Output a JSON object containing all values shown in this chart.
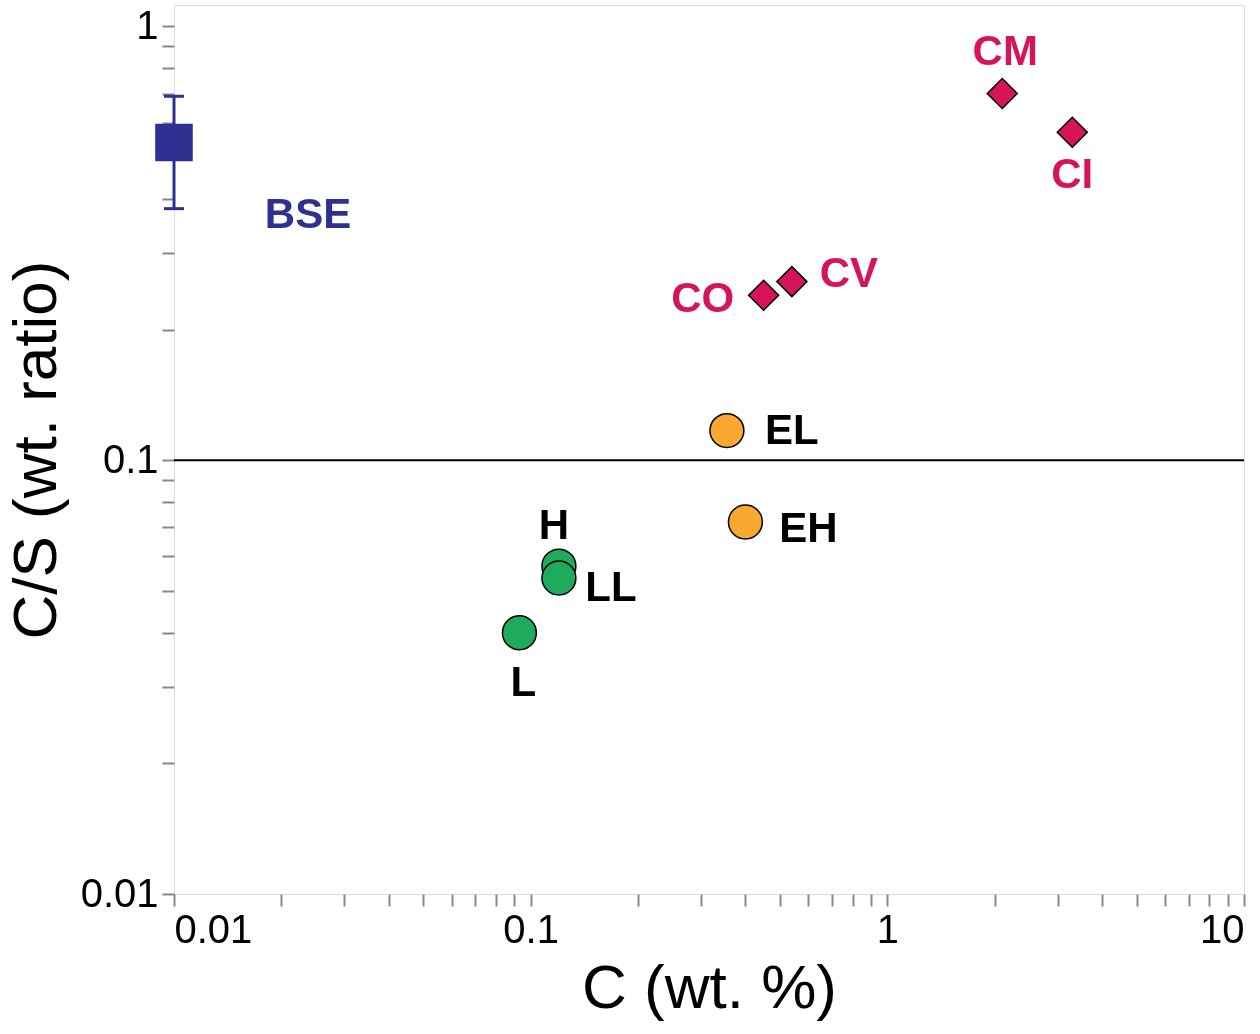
{
  "chart_data": {
    "type": "scatter",
    "xlabel": "C (wt. %)",
    "ylabel": "C/S (wt. ratio)",
    "log": "xy",
    "grid": false,
    "xlim": [
      0.01,
      10
    ],
    "ylim": [
      0.01,
      1.12
    ],
    "xticks": [
      0.01,
      {
        "value": 0.02,
        "label": null
      },
      {
        "value": 0.03,
        "label": null
      },
      {
        "value": 0.04,
        "label": null
      },
      {
        "value": 0.05,
        "label": null
      },
      {
        "value": 0.06,
        "label": null
      },
      {
        "value": 0.07,
        "label": null
      },
      {
        "value": 0.08,
        "label": null
      },
      {
        "value": 0.09,
        "label": null
      },
      0.1,
      {
        "value": 0.2,
        "label": null
      },
      {
        "value": 0.3,
        "label": null
      },
      {
        "value": 0.4,
        "label": null
      },
      {
        "value": 0.5,
        "label": null
      },
      {
        "value": 0.6,
        "label": null
      },
      {
        "value": 0.7,
        "label": null
      },
      {
        "value": 0.8,
        "label": null
      },
      {
        "value": 0.9,
        "label": null
      },
      1,
      {
        "value": 2,
        "label": null
      },
      {
        "value": 3,
        "label": null
      },
      {
        "value": 4,
        "label": null
      },
      {
        "value": 5,
        "label": null
      },
      {
        "value": 6,
        "label": null
      },
      {
        "value": 7,
        "label": null
      },
      {
        "value": 8,
        "label": null
      },
      {
        "value": 9,
        "label": null
      },
      10
    ],
    "yticks": [
      0.01,
      {
        "value": 0.02,
        "label": null
      },
      {
        "value": 0.03,
        "label": null
      },
      {
        "value": 0.04,
        "label": null
      },
      {
        "value": 0.05,
        "label": null
      },
      {
        "value": 0.06,
        "label": null
      },
      {
        "value": 0.07,
        "label": null
      },
      {
        "value": 0.08,
        "label": null
      },
      {
        "value": 0.09,
        "label": null
      },
      0.1,
      {
        "value": 0.2,
        "label": null
      },
      {
        "value": 0.3,
        "label": null
      },
      {
        "value": 0.4,
        "label": null
      },
      {
        "value": 0.5,
        "label": null
      },
      {
        "value": 0.6,
        "label": null
      },
      {
        "value": 0.7,
        "label": null
      },
      {
        "value": 0.8,
        "label": null
      },
      {
        "value": 0.9,
        "label": null
      },
      1
    ],
    "ref_lines": [
      {
        "axis": "y",
        "value": 0.1,
        "color": "#000000"
      }
    ],
    "series": [
      {
        "color": "#2e3192",
        "marker": "square",
        "x": [
          0.01
        ],
        "values": [
          0.54
        ],
        "errors": [
          [
            0.38,
            0.69
          ]
        ]
      },
      {
        "color": "#d6145a",
        "marker": "diamond",
        "x": [
          2.1,
          3.3,
          0.54,
          0.45
        ],
        "values": [
          0.7,
          0.57,
          0.258,
          0.24
        ]
      },
      {
        "color": "#f9a832",
        "marker": "circle",
        "x": [
          0.355,
          0.4
        ],
        "values": [
          0.117,
          0.072
        ]
      },
      {
        "color": "#1fab5e",
        "marker": "circle",
        "x": [
          0.12,
          0.12,
          0.093
        ],
        "values": [
          0.057,
          0.0535,
          0.04
        ]
      }
    ],
    "annotations": [
      {
        "text": "BSE",
        "x": 0.01,
        "y": 0.54
      },
      {
        "text": "CM",
        "x": 2.1,
        "y": 0.7
      },
      {
        "text": "CI",
        "x": 3.3,
        "y": 0.57
      },
      {
        "text": "CV",
        "x": 0.54,
        "y": 0.258
      },
      {
        "text": "CO",
        "x": 0.45,
        "y": 0.24
      },
      {
        "text": "EL",
        "x": 0.355,
        "y": 0.117
      },
      {
        "text": "EH",
        "x": 0.4,
        "y": 0.072
      },
      {
        "text": "H",
        "x": 0.12,
        "y": 0.057
      },
      {
        "text": "LL",
        "x": 0.12,
        "y": 0.0535
      },
      {
        "text": "L",
        "x": 0.093,
        "y": 0.04
      }
    ]
  }
}
